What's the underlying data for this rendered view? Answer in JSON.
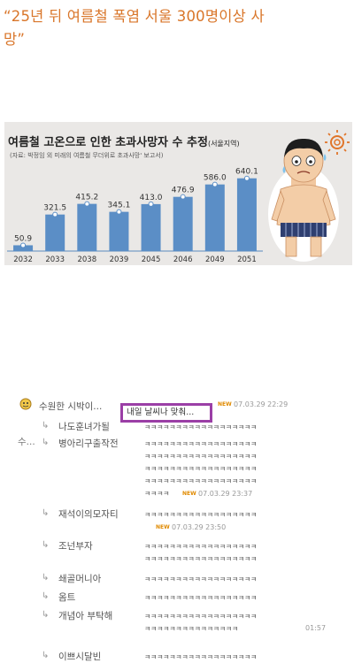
{
  "headline": {
    "line1": "“25년 뒤 여름철 폭염 서울 300명이상 사",
    "line2": "망”"
  },
  "infographic": {
    "title": "여름철 고온으로 인한 초과사망자 수 추정",
    "title_sub": "(서울지역)",
    "source_note": "(자료: 박정임 외 미래의 여름철 무더위로 초과사망' 보고서)"
  },
  "chart_data": {
    "type": "bar",
    "categories": [
      "2032",
      "2033",
      "2038",
      "2039",
      "2045",
      "2046",
      "2049",
      "2051"
    ],
    "values": [
      50.9,
      321.5,
      415.2,
      345.1,
      413.0,
      476.9,
      586.0,
      640.1
    ],
    "value_labels": [
      "50.9",
      "321.5",
      "415.2",
      "345.1",
      "413.0",
      "476.9",
      "586.0",
      "640.1"
    ],
    "title": "여름철 고온으로 인한 초과사망자 수 추정",
    "ylim": [
      0,
      700
    ],
    "colors": {
      "bar": "#5b8ec6",
      "axis": "#8aa9cc"
    }
  },
  "comments": {
    "top": {
      "username": "수원한 시박이...",
      "highlighted_text": "내일 날씨나 맞춰...",
      "new_badge": "NEW",
      "timestamp": "07.03.29 22:29",
      "left_label": "수..."
    },
    "replies": [
      {
        "arrow": "↳",
        "username": "나도훈녀가될",
        "text": "ㅋㅋㅋㅋㅋㅋㅋㅋㅋㅋㅋㅋㅋㅋㅋㅋㅋㅋ"
      },
      {
        "arrow": "↳",
        "username": "병아리구출작전",
        "text": "ㅋㅋㅋㅋㅋㅋㅋㅋㅋㅋㅋㅋㅋㅋㅋㅋㅋㅋ",
        "more_lines": [
          "ㅋㅋㅋㅋㅋㅋㅋㅋㅋㅋㅋㅋㅋㅋㅋㅋㅋㅋ",
          "ㅋㅋㅋㅋㅋㅋㅋㅋㅋㅋㅋㅋㅋㅋㅋㅋㅋㅋ",
          "ㅋㅋㅋㅋㅋㅋㅋㅋㅋㅋㅋㅋㅋㅋㅋㅋㅋㅋ",
          "ㅋㅋㅋㅋ"
        ],
        "new_badge": "NEW",
        "timestamp": "07.03.29 23:37"
      },
      {
        "arrow": "↳",
        "username": "재석이의모자티",
        "text": "ㅋㅋㅋㅋㅋㅋㅋㅋㅋㅋㅋㅋㅋㅋㅋㅋㅋㅋ",
        "new_badge": "NEW",
        "timestamp": "07.03.29 23:50"
      },
      {
        "arrow": "↳",
        "username": "조넌부자",
        "text": "ㅋㅋㅋㅋㅋㅋㅋㅋㅋㅋㅋㅋㅋㅋㅋㅋㅋㅋ",
        "more_lines": [
          "ㅋㅋㅋㅋㅋㅋㅋㅋㅋㅋㅋㅋㅋㅋㅋㅋㅋㅋ"
        ]
      },
      {
        "arrow": "↳",
        "username": "쇄골머니아",
        "text": "ㅋㅋㅋㅋㅋㅋㅋㅋㅋㅋㅋㅋㅋㅋㅋㅋㅋㅋ"
      },
      {
        "arrow": "↳",
        "username": "옴트",
        "text": "ㅋㅋㅋㅋㅋㅋㅋㅋㅋㅋㅋㅋㅋㅋㅋㅋㅋㅋ"
      },
      {
        "arrow": "↳",
        "username": "개념아 부탁해",
        "text": "ㅋㅋㅋㅋㅋㅋㅋㅋㅋㅋㅋㅋㅋㅋㅋㅋㅋㅋ",
        "more_lines": [
          "ㅋㅋㅋㅋㅋㅋㅋㅋㅋㅋㅋㅋㅋㅋㅋ"
        ],
        "timestamp": "01:57"
      },
      {
        "arrow": "↳",
        "username": "이쁘시달빈",
        "text": "ㅋㅋㅋㅋㅋㅋㅋㅋㅋㅋㅋㅋㅋㅋㅋㅋㅋㅋ"
      }
    ]
  }
}
